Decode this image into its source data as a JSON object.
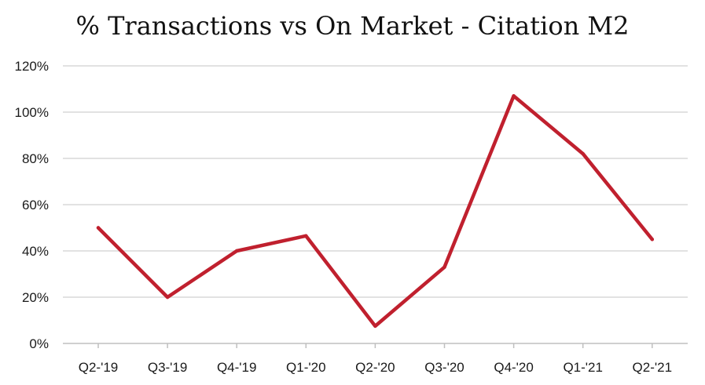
{
  "chart_data": {
    "type": "line",
    "title": "% Transactions vs On Market - Citation M2",
    "xlabel": "",
    "ylabel": "",
    "categories": [
      "Q2-'19",
      "Q3-'19",
      "Q4-'19",
      "Q1-'20",
      "Q2-'20",
      "Q3-'20",
      "Q4-'20",
      "Q1-'21",
      "Q2-'21"
    ],
    "series": [
      {
        "values": [
          50,
          20,
          40,
          46.5,
          7.5,
          33,
          107,
          82,
          45
        ]
      }
    ],
    "y_ticks": [
      "0%",
      "20%",
      "40%",
      "60%",
      "80%",
      "100%",
      "120%"
    ],
    "ylim": [
      0,
      120
    ],
    "grid": true,
    "legend": "none"
  },
  "colors": {
    "line": "#c0202e",
    "grid": "#d9d9d9",
    "axis": "#bfbfbf",
    "text": "#1a1a1a"
  }
}
